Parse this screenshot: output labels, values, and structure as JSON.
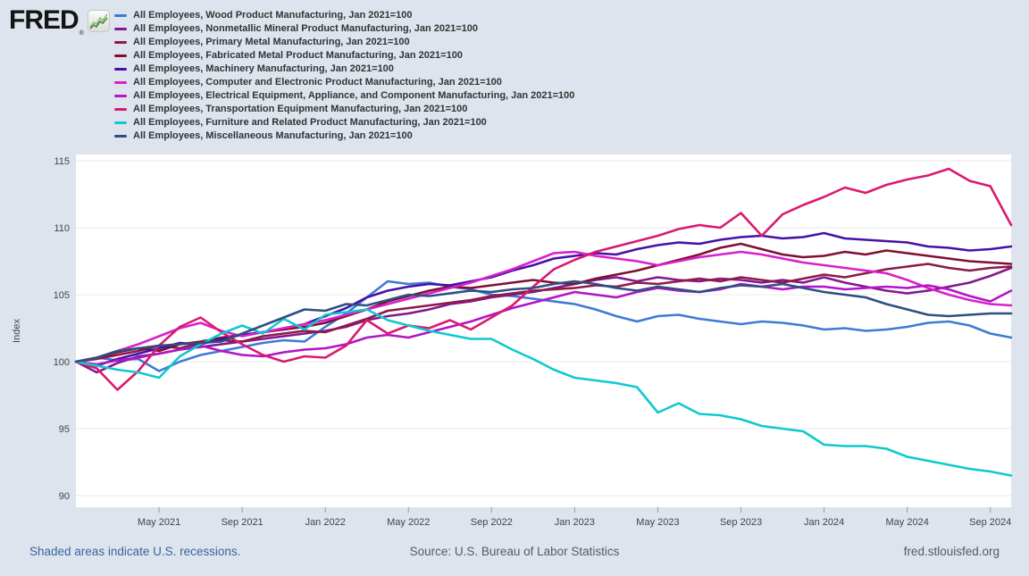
{
  "header": {
    "brand": "FRED",
    "registered": "®"
  },
  "legend": {
    "items": [
      {
        "label": "All Employees, Wood Product Manufacturing, Jan 2021=100",
        "color": "#3e7ad6"
      },
      {
        "label": "All Employees, Nonmetallic Mineral Product Manufacturing, Jan 2021=100",
        "color": "#83188f"
      },
      {
        "label": "All Employees, Primary Metal Manufacturing, Jan 2021=100",
        "color": "#8d1a49"
      },
      {
        "label": "All Employees, Fabricated Metal Product Manufacturing, Jan 2021=100",
        "color": "#7f1032"
      },
      {
        "label": "All Employees, Machinery Manufacturing, Jan 2021=100",
        "color": "#4412a8"
      },
      {
        "label": "All Employees, Computer and Electronic Product Manufacturing, Jan 2021=100",
        "color": "#d920cc"
      },
      {
        "label": "All Employees, Electrical Equipment, Appliance, and Component Manufacturing, Jan 2021=100",
        "color": "#b414c6"
      },
      {
        "label": "All Employees, Transportation Equipment Manufacturing, Jan 2021=100",
        "color": "#da1a71"
      },
      {
        "label": "All Employees, Furniture and Related Product Manufacturing, Jan 2021=100",
        "color": "#0fc9cd"
      },
      {
        "label": "All Employees, Miscellaneous Manufacturing, Jan 2021=100",
        "color": "#2e4f80"
      }
    ]
  },
  "chart_data": {
    "type": "line",
    "ylabel": "Index",
    "x_start": "Jan 2021",
    "x_months": 46,
    "x_ticks": [
      {
        "month": 4,
        "label": "May 2021"
      },
      {
        "month": 8,
        "label": "Sep 2021"
      },
      {
        "month": 12,
        "label": "Jan 2022"
      },
      {
        "month": 16,
        "label": "May 2022"
      },
      {
        "month": 20,
        "label": "Sep 2022"
      },
      {
        "month": 24,
        "label": "Jan 2023"
      },
      {
        "month": 28,
        "label": "May 2023"
      },
      {
        "month": 32,
        "label": "Sep 2023"
      },
      {
        "month": 36,
        "label": "Jan 2024"
      },
      {
        "month": 40,
        "label": "May 2024"
      },
      {
        "month": 44,
        "label": "Sep 2024"
      }
    ],
    "y_ticks": [
      90,
      95,
      100,
      105,
      110,
      115
    ],
    "ylim": [
      89,
      115.3
    ],
    "grid": "horizontal",
    "legend_position": "top",
    "series": [
      {
        "name": "Wood Product Manufacturing",
        "color": "#3e7ad6",
        "values": [
          100,
          100.3,
          100.1,
          100.2,
          99.3,
          100.0,
          100.5,
          100.8,
          101.1,
          101.4,
          101.6,
          101.5,
          102.6,
          103.6,
          104.8,
          106.0,
          105.8,
          105.9,
          105.6,
          105.4,
          105.0,
          104.9,
          104.7,
          104.5,
          104.3,
          103.9,
          103.4,
          103.0,
          103.4,
          103.5,
          103.2,
          103.0,
          102.8,
          103.0,
          102.9,
          102.7,
          102.4,
          102.5,
          102.3,
          102.4,
          102.6,
          102.9,
          103.0,
          102.7,
          102.1,
          101.8
        ]
      },
      {
        "name": "Nonmetallic Mineral Product Manufacturing",
        "color": "#83188f",
        "values": [
          100,
          99.2,
          99.9,
          100.4,
          100.6,
          100.9,
          101.1,
          101.3,
          101.5,
          101.7,
          101.9,
          102.1,
          102.3,
          102.6,
          103.1,
          103.4,
          103.6,
          103.9,
          104.3,
          104.5,
          104.8,
          105.0,
          105.2,
          105.5,
          105.8,
          106.1,
          106.3,
          106.0,
          106.3,
          106.1,
          106.0,
          106.2,
          106.1,
          105.9,
          106.1,
          105.9,
          106.3,
          105.9,
          105.6,
          105.3,
          105.1,
          105.3,
          105.6,
          105.9,
          106.4,
          107.0
        ]
      },
      {
        "name": "Primary Metal Manufacturing",
        "color": "#8d1a49",
        "values": [
          100,
          100.2,
          100.5,
          100.8,
          101.2,
          101.0,
          101.4,
          101.6,
          101.5,
          101.9,
          102.1,
          102.3,
          102.2,
          102.7,
          103.2,
          103.8,
          104.0,
          104.2,
          104.4,
          104.6,
          104.9,
          105.1,
          105.3,
          105.4,
          105.5,
          105.7,
          105.6,
          105.9,
          105.8,
          106.0,
          106.2,
          106.0,
          106.3,
          106.1,
          105.9,
          106.2,
          106.5,
          106.3,
          106.6,
          106.9,
          107.1,
          107.3,
          107.0,
          106.8,
          107.0,
          107.1
        ]
      },
      {
        "name": "Fabricated Metal Product Manufacturing",
        "color": "#7f1032",
        "values": [
          100,
          100.3,
          100.7,
          101.0,
          100.8,
          101.3,
          101.5,
          101.8,
          102.0,
          102.2,
          102.4,
          102.6,
          102.9,
          103.4,
          103.9,
          104.5,
          104.9,
          105.3,
          105.6,
          105.5,
          105.7,
          105.9,
          106.1,
          105.9,
          105.8,
          106.2,
          106.5,
          106.8,
          107.2,
          107.6,
          108.0,
          108.5,
          108.8,
          108.4,
          108.0,
          107.8,
          107.9,
          108.2,
          108.0,
          108.3,
          108.1,
          107.9,
          107.7,
          107.5,
          107.4,
          107.3
        ]
      },
      {
        "name": "Machinery Manufacturing",
        "color": "#4412a8",
        "values": [
          100,
          99.7,
          100.2,
          100.6,
          101.0,
          101.4,
          101.3,
          101.7,
          102.0,
          102.2,
          102.5,
          102.8,
          103.4,
          104.0,
          104.8,
          105.3,
          105.6,
          105.8,
          105.7,
          106.0,
          106.3,
          106.8,
          107.2,
          107.7,
          107.9,
          108.1,
          108.0,
          108.4,
          108.7,
          108.9,
          108.8,
          109.1,
          109.3,
          109.4,
          109.2,
          109.3,
          109.6,
          109.2,
          109.1,
          109.0,
          108.9,
          108.6,
          108.5,
          108.3,
          108.4,
          108.6
        ]
      },
      {
        "name": "Computer and Electronic Product Manufacturing",
        "color": "#d920cc",
        "values": [
          100,
          100.3,
          100.8,
          101.3,
          101.9,
          102.5,
          102.9,
          102.3,
          101.9,
          102.2,
          102.5,
          102.8,
          103.1,
          103.5,
          103.9,
          104.3,
          104.7,
          105.1,
          105.5,
          105.9,
          106.4,
          106.9,
          107.5,
          108.1,
          108.2,
          107.9,
          107.7,
          107.5,
          107.2,
          107.5,
          107.8,
          108.0,
          108.2,
          108.0,
          107.7,
          107.4,
          107.2,
          107.0,
          106.8,
          106.6,
          106.1,
          105.5,
          105.0,
          104.6,
          104.3,
          104.2
        ]
      },
      {
        "name": "Electrical Equipment, Appliance, and Component Manufacturing",
        "color": "#b414c6",
        "values": [
          100,
          99.8,
          100.1,
          100.3,
          100.6,
          100.9,
          101.2,
          100.8,
          100.5,
          100.4,
          100.7,
          100.9,
          101.0,
          101.3,
          101.8,
          102.0,
          101.8,
          102.2,
          102.6,
          103.0,
          103.5,
          104.0,
          104.4,
          104.8,
          105.2,
          105.0,
          104.8,
          105.2,
          105.5,
          105.3,
          105.2,
          105.4,
          105.8,
          105.6,
          105.4,
          105.6,
          105.6,
          105.4,
          105.5,
          105.6,
          105.5,
          105.7,
          105.4,
          104.9,
          104.5,
          105.3
        ]
      },
      {
        "name": "Transportation Equipment Manufacturing",
        "color": "#da1a71",
        "values": [
          100,
          99.5,
          97.9,
          99.3,
          101.2,
          102.6,
          103.3,
          102.2,
          101.3,
          100.5,
          100.0,
          100.4,
          100.3,
          101.2,
          103.1,
          102.1,
          102.7,
          102.5,
          103.1,
          102.4,
          103.3,
          104.2,
          105.6,
          106.9,
          107.6,
          108.2,
          108.6,
          109.0,
          109.4,
          109.9,
          110.2,
          110.0,
          111.1,
          109.4,
          111.0,
          111.7,
          112.3,
          113.0,
          112.6,
          113.2,
          113.6,
          113.9,
          114.4,
          113.5,
          113.1,
          110.2
        ]
      },
      {
        "name": "Furniture and Related Product Manufacturing",
        "color": "#0fc9cd",
        "values": [
          100,
          99.7,
          99.4,
          99.2,
          98.8,
          100.4,
          101.3,
          102.1,
          102.7,
          102.1,
          103.2,
          102.4,
          103.5,
          103.7,
          103.9,
          103.1,
          102.7,
          102.3,
          102.0,
          101.7,
          101.7,
          100.9,
          100.2,
          99.4,
          98.8,
          98.6,
          98.4,
          98.1,
          96.2,
          96.9,
          96.1,
          96.0,
          95.7,
          95.2,
          95.0,
          94.8,
          93.8,
          93.7,
          93.7,
          93.5,
          92.9,
          92.6,
          92.3,
          92.0,
          91.8,
          91.5
        ]
      },
      {
        "name": "Miscellaneous Manufacturing",
        "color": "#2e4f80",
        "values": [
          100,
          100.3,
          100.8,
          101.0,
          101.2,
          101.3,
          101.4,
          101.5,
          102.1,
          102.7,
          103.3,
          103.9,
          103.8,
          104.3,
          104.2,
          104.6,
          105.0,
          104.9,
          105.1,
          105.3,
          105.2,
          105.4,
          105.5,
          105.8,
          106.0,
          105.8,
          105.5,
          105.3,
          105.6,
          105.4,
          105.2,
          105.5,
          105.7,
          105.6,
          105.8,
          105.5,
          105.2,
          105.0,
          104.8,
          104.3,
          103.9,
          103.5,
          103.4,
          103.5,
          103.6,
          103.6
        ]
      }
    ],
    "colors": {
      "page_background": "#dde4ed",
      "plot_background": "#ffffff",
      "gridline": "#e8e8e8",
      "tick": "#999999",
      "axis_text": "#444444"
    }
  },
  "footer": {
    "recessions_note": "Shaded areas indicate U.S. recessions.",
    "source": "Source: U.S. Bureau of Labor Statistics",
    "site": "fred.stlouisfed.org"
  }
}
